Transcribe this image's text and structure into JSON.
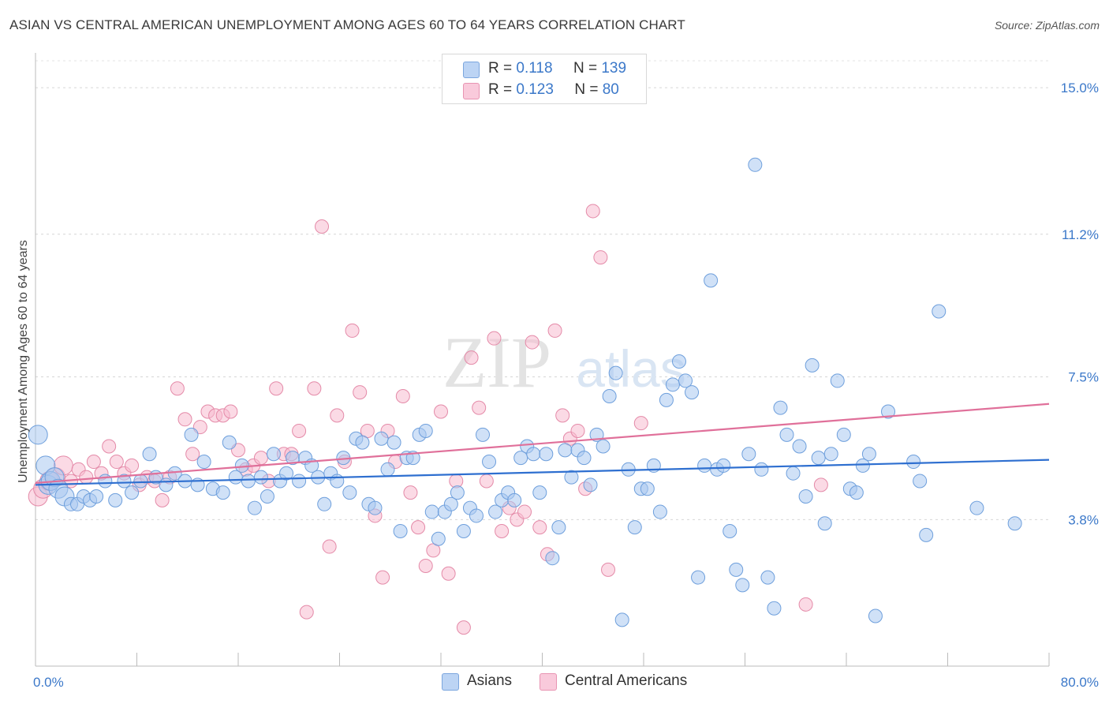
{
  "header": {
    "title": "ASIAN VS CENTRAL AMERICAN UNEMPLOYMENT AMONG AGES 60 TO 64 YEARS CORRELATION CHART",
    "source": "Source: ZipAtlas.com"
  },
  "stats_legend": {
    "rows": [
      {
        "r_label": "R =",
        "r_value": "0.118",
        "n_label": "N =",
        "n_value": "139",
        "color": "#aac8f0"
      },
      {
        "r_label": "R =",
        "r_value": "0.123",
        "n_label": "N =",
        "n_value": "80",
        "color": "#f7bcd0"
      }
    ]
  },
  "watermark": {
    "zip": "ZIP",
    "atlas": "atlas"
  },
  "chart_data": {
    "type": "scatter",
    "title": "ASIAN VS CENTRAL AMERICAN UNEMPLOYMENT AMONG AGES 60 TO 64 YEARS CORRELATION CHART",
    "xlabel": "",
    "ylabel": "Unemployment Among Ages 60 to 64 years",
    "xlim": [
      0,
      80
    ],
    "ylim": [
      0,
      15.8
    ],
    "x_tick_labels": [
      "0.0%",
      "80.0%"
    ],
    "y_ticks": [
      3.8,
      7.5,
      11.2,
      15.0
    ],
    "y_tick_labels": [
      "3.8%",
      "7.5%",
      "11.2%",
      "15.0%"
    ],
    "grid": "horizontal dashed",
    "legend_position": "bottom",
    "series": [
      {
        "name": "Asians",
        "color": "#aac8f0",
        "stroke": "#6e9fdc",
        "trend": {
          "x": [
            0,
            80
          ],
          "y": [
            4.7,
            5.35
          ],
          "color": "#2e6fd0"
        },
        "points": [
          [
            0.2,
            6.0
          ],
          [
            0.8,
            5.2
          ],
          [
            1.0,
            4.7
          ],
          [
            1.2,
            4.8
          ],
          [
            1.5,
            4.9
          ],
          [
            1.8,
            4.6
          ],
          [
            2.3,
            4.4
          ],
          [
            2.8,
            4.2
          ],
          [
            3.3,
            4.2
          ],
          [
            3.8,
            4.4
          ],
          [
            4.3,
            4.3
          ],
          [
            4.8,
            4.4
          ],
          [
            5.5,
            4.8
          ],
          [
            6.3,
            4.3
          ],
          [
            7.0,
            4.8
          ],
          [
            7.6,
            4.5
          ],
          [
            8.3,
            4.8
          ],
          [
            9.0,
            5.5
          ],
          [
            9.5,
            4.9
          ],
          [
            10.3,
            4.7
          ],
          [
            11.0,
            5.0
          ],
          [
            11.8,
            4.8
          ],
          [
            12.3,
            6.0
          ],
          [
            12.8,
            4.7
          ],
          [
            13.3,
            5.3
          ],
          [
            14.0,
            4.6
          ],
          [
            14.8,
            4.5
          ],
          [
            15.3,
            5.8
          ],
          [
            15.8,
            4.9
          ],
          [
            16.3,
            5.2
          ],
          [
            16.8,
            4.8
          ],
          [
            17.3,
            4.1
          ],
          [
            17.8,
            4.9
          ],
          [
            18.3,
            4.4
          ],
          [
            18.8,
            5.5
          ],
          [
            19.3,
            4.8
          ],
          [
            19.8,
            5.0
          ],
          [
            20.3,
            5.4
          ],
          [
            20.8,
            4.8
          ],
          [
            21.3,
            5.4
          ],
          [
            21.8,
            5.2
          ],
          [
            22.3,
            4.9
          ],
          [
            22.8,
            4.2
          ],
          [
            23.3,
            5.0
          ],
          [
            23.8,
            4.8
          ],
          [
            24.3,
            5.4
          ],
          [
            24.8,
            4.5
          ],
          [
            25.3,
            5.9
          ],
          [
            25.8,
            5.8
          ],
          [
            26.3,
            4.2
          ],
          [
            26.8,
            4.1
          ],
          [
            27.3,
            5.9
          ],
          [
            27.8,
            5.1
          ],
          [
            28.3,
            5.8
          ],
          [
            28.8,
            3.5
          ],
          [
            29.3,
            5.4
          ],
          [
            29.8,
            5.4
          ],
          [
            30.3,
            6.0
          ],
          [
            30.8,
            6.1
          ],
          [
            31.3,
            4.0
          ],
          [
            31.8,
            3.3
          ],
          [
            32.3,
            4.0
          ],
          [
            32.8,
            4.2
          ],
          [
            33.3,
            4.5
          ],
          [
            33.8,
            3.5
          ],
          [
            34.3,
            4.1
          ],
          [
            34.8,
            3.9
          ],
          [
            35.3,
            6.0
          ],
          [
            35.8,
            5.3
          ],
          [
            36.3,
            4.0
          ],
          [
            36.8,
            4.3
          ],
          [
            37.3,
            4.5
          ],
          [
            37.8,
            4.3
          ],
          [
            38.3,
            5.4
          ],
          [
            38.8,
            5.7
          ],
          [
            39.3,
            5.5
          ],
          [
            39.8,
            4.5
          ],
          [
            40.3,
            5.5
          ],
          [
            40.8,
            2.8
          ],
          [
            41.3,
            3.6
          ],
          [
            41.8,
            5.6
          ],
          [
            42.3,
            4.9
          ],
          [
            42.8,
            5.6
          ],
          [
            43.3,
            5.4
          ],
          [
            43.8,
            4.7
          ],
          [
            44.3,
            6.0
          ],
          [
            44.8,
            5.7
          ],
          [
            45.3,
            7.0
          ],
          [
            45.8,
            7.6
          ],
          [
            46.3,
            1.2
          ],
          [
            46.8,
            5.1
          ],
          [
            47.3,
            3.6
          ],
          [
            47.8,
            4.6
          ],
          [
            48.3,
            4.6
          ],
          [
            48.8,
            5.2
          ],
          [
            49.3,
            4.0
          ],
          [
            49.8,
            6.9
          ],
          [
            50.3,
            7.3
          ],
          [
            50.8,
            7.9
          ],
          [
            51.3,
            7.4
          ],
          [
            51.8,
            7.1
          ],
          [
            52.3,
            2.3
          ],
          [
            52.8,
            5.2
          ],
          [
            53.3,
            10.0
          ],
          [
            53.8,
            5.1
          ],
          [
            54.3,
            5.2
          ],
          [
            54.8,
            3.5
          ],
          [
            55.3,
            2.5
          ],
          [
            55.8,
            2.1
          ],
          [
            56.3,
            5.5
          ],
          [
            56.8,
            13.0
          ],
          [
            57.3,
            5.1
          ],
          [
            57.8,
            2.3
          ],
          [
            58.3,
            1.5
          ],
          [
            58.8,
            6.7
          ],
          [
            59.3,
            6.0
          ],
          [
            59.8,
            5.0
          ],
          [
            60.3,
            5.7
          ],
          [
            60.8,
            4.4
          ],
          [
            61.3,
            7.8
          ],
          [
            61.8,
            5.4
          ],
          [
            62.3,
            3.7
          ],
          [
            62.8,
            5.5
          ],
          [
            63.3,
            7.4
          ],
          [
            63.8,
            6.0
          ],
          [
            64.3,
            4.6
          ],
          [
            64.8,
            4.5
          ],
          [
            65.3,
            5.2
          ],
          [
            65.8,
            5.5
          ],
          [
            66.3,
            1.3
          ],
          [
            67.3,
            6.6
          ],
          [
            69.3,
            5.3
          ],
          [
            69.8,
            4.8
          ],
          [
            70.3,
            3.4
          ],
          [
            71.3,
            9.2
          ],
          [
            74.3,
            4.1
          ],
          [
            77.3,
            3.7
          ]
        ]
      },
      {
        "name": "Central Americans",
        "color": "#f7bcd0",
        "stroke": "#e48aa8",
        "trend": {
          "x": [
            0,
            80
          ],
          "y": [
            4.75,
            6.8
          ],
          "color": "#e0709a"
        },
        "points": [
          [
            0.2,
            4.4
          ],
          [
            0.6,
            4.6
          ],
          [
            1.1,
            4.8
          ],
          [
            1.6,
            4.9
          ],
          [
            2.2,
            5.2
          ],
          [
            2.8,
            4.8
          ],
          [
            3.4,
            5.1
          ],
          [
            4.0,
            4.9
          ],
          [
            4.6,
            5.3
          ],
          [
            5.2,
            5.0
          ],
          [
            5.8,
            5.7
          ],
          [
            6.4,
            5.3
          ],
          [
            7.0,
            5.0
          ],
          [
            7.6,
            5.2
          ],
          [
            8.2,
            4.7
          ],
          [
            8.8,
            4.9
          ],
          [
            9.4,
            4.8
          ],
          [
            10.0,
            4.3
          ],
          [
            10.6,
            4.9
          ],
          [
            11.2,
            7.2
          ],
          [
            11.8,
            6.4
          ],
          [
            12.4,
            5.5
          ],
          [
            13.0,
            6.2
          ],
          [
            13.6,
            6.6
          ],
          [
            14.2,
            6.5
          ],
          [
            14.8,
            6.5
          ],
          [
            15.4,
            6.6
          ],
          [
            16.0,
            5.6
          ],
          [
            16.6,
            5.1
          ],
          [
            17.2,
            5.2
          ],
          [
            17.8,
            5.4
          ],
          [
            18.4,
            4.8
          ],
          [
            19.0,
            7.2
          ],
          [
            19.6,
            5.5
          ],
          [
            20.2,
            5.5
          ],
          [
            20.8,
            6.1
          ],
          [
            21.4,
            1.4
          ],
          [
            22.0,
            7.2
          ],
          [
            22.6,
            11.4
          ],
          [
            23.2,
            3.1
          ],
          [
            23.8,
            6.5
          ],
          [
            24.4,
            5.3
          ],
          [
            25.0,
            8.7
          ],
          [
            25.6,
            7.1
          ],
          [
            26.2,
            6.1
          ],
          [
            26.8,
            3.9
          ],
          [
            27.4,
            2.3
          ],
          [
            27.8,
            6.1
          ],
          [
            28.4,
            5.3
          ],
          [
            29.0,
            7.0
          ],
          [
            29.6,
            4.5
          ],
          [
            30.2,
            3.6
          ],
          [
            30.8,
            2.6
          ],
          [
            31.4,
            3.0
          ],
          [
            32.0,
            6.6
          ],
          [
            32.6,
            2.4
          ],
          [
            33.2,
            4.8
          ],
          [
            33.8,
            1.0
          ],
          [
            34.4,
            8.0
          ],
          [
            35.0,
            6.7
          ],
          [
            35.6,
            4.8
          ],
          [
            36.2,
            8.5
          ],
          [
            36.8,
            3.5
          ],
          [
            37.4,
            4.1
          ],
          [
            38.0,
            3.8
          ],
          [
            38.6,
            4.0
          ],
          [
            39.2,
            8.4
          ],
          [
            39.8,
            3.6
          ],
          [
            40.4,
            2.9
          ],
          [
            41.0,
            8.7
          ],
          [
            41.6,
            6.5
          ],
          [
            42.2,
            5.9
          ],
          [
            42.8,
            6.1
          ],
          [
            43.4,
            4.6
          ],
          [
            44.0,
            11.8
          ],
          [
            44.6,
            10.6
          ],
          [
            45.2,
            2.5
          ],
          [
            47.8,
            6.3
          ],
          [
            60.8,
            1.6
          ],
          [
            62.0,
            4.7
          ]
        ]
      }
    ]
  },
  "bottom_legend": [
    {
      "label": "Asians",
      "color": "#aac8f0"
    },
    {
      "label": "Central Americans",
      "color": "#f7bcd0"
    }
  ]
}
